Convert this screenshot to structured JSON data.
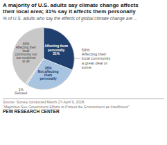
{
  "chart_data": {
    "type": "pie",
    "title": "A majority of U.S. adults say climate change affects\ntheir local area; 31% say it affects them personally",
    "subtitle": "% of U.S. adults who say the effects of global climate change are ...",
    "categories": [
      "Affecting them\npersonally\n31%",
      "28%\nNot affecting\nthem\npersonally",
      "1%\nRefused",
      "40%\nAffecting their\nlocal\ncommunity not\ntoo much/not\nat all"
    ],
    "values": [
      31,
      28,
      1,
      40
    ],
    "colors": [
      "#1f3f6e",
      "#a8c4e0",
      "#d3d3d3",
      "#c8c8c8"
    ],
    "annotations": [
      "59%\nAffecting their\nlocal community\na great deal or\nsome",
      "Source: Survey conducted March 27-April 9, 2018.\n\"Majorities See Government Efforts to Protect the Environment as Insufficient\"",
      "PEW RESEARCH CENTER"
    ]
  }
}
